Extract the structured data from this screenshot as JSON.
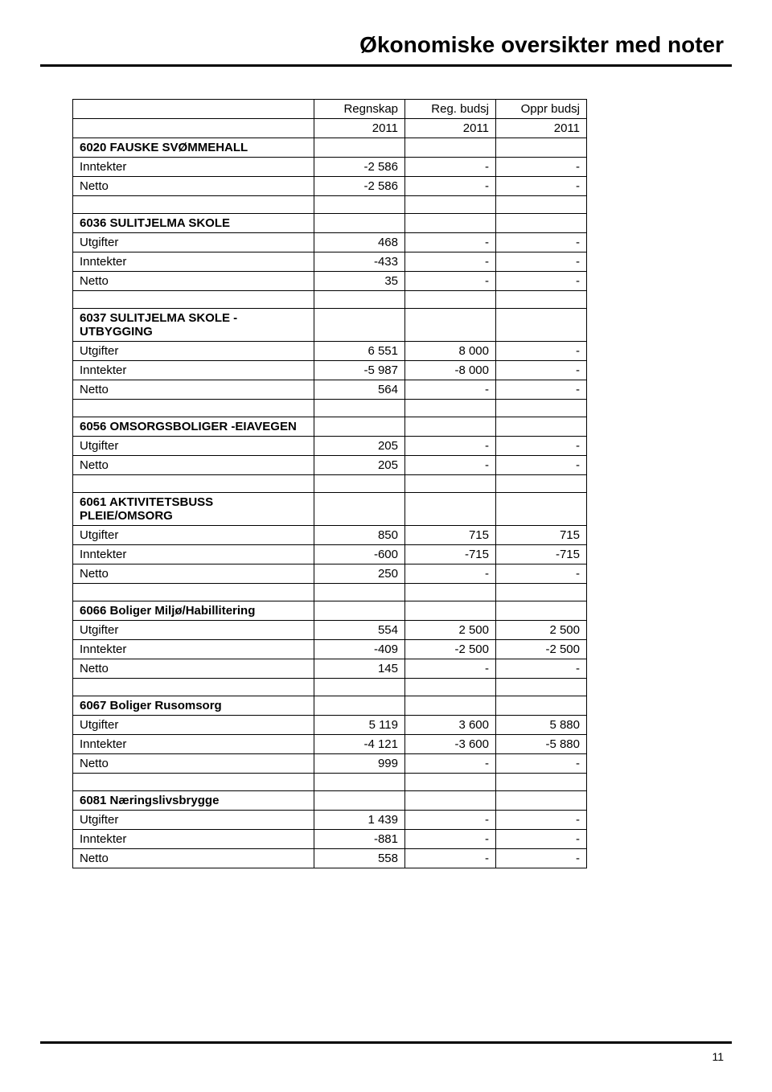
{
  "page": {
    "title": "Økonomiske oversikter med noter",
    "pageNumber": "11"
  },
  "tableHeaders": {
    "col1": "Regnskap",
    "col2": "Reg. budsj",
    "col3": "Oppr budsj",
    "year": "2011"
  },
  "sections": [
    {
      "title": "6020 FAUSKE SVØMMEHALL",
      "rows": [
        {
          "label": "Inntekter",
          "v1": "-2 586",
          "v2": "-",
          "v3": "-"
        },
        {
          "label": "Netto",
          "v1": "-2 586",
          "v2": "-",
          "v3": "-"
        }
      ]
    },
    {
      "title": "6036 SULITJELMA SKOLE",
      "rows": [
        {
          "label": "Utgifter",
          "v1": "468",
          "v2": "-",
          "v3": "-"
        },
        {
          "label": "Inntekter",
          "v1": "-433",
          "v2": "-",
          "v3": "-"
        },
        {
          "label": "Netto",
          "v1": "35",
          "v2": "-",
          "v3": "-"
        }
      ]
    },
    {
      "title": "6037 SULITJELMA SKOLE - UTBYGGING",
      "rows": [
        {
          "label": "Utgifter",
          "v1": "6 551",
          "v2": "8 000",
          "v3": "-"
        },
        {
          "label": "Inntekter",
          "v1": "-5 987",
          "v2": "-8 000",
          "v3": "-"
        },
        {
          "label": "Netto",
          "v1": "564",
          "v2": "-",
          "v3": "-"
        }
      ]
    },
    {
      "title": "6056 OMSORGSBOLIGER -EIAVEGEN",
      "rows": [
        {
          "label": "Utgifter",
          "v1": "205",
          "v2": "-",
          "v3": "-"
        },
        {
          "label": "Netto",
          "v1": "205",
          "v2": "-",
          "v3": "-"
        }
      ]
    },
    {
      "title": "6061 AKTIVITETSBUSS PLEIE/OMSORG",
      "rows": [
        {
          "label": "Utgifter",
          "v1": "850",
          "v2": "715",
          "v3": "715"
        },
        {
          "label": "Inntekter",
          "v1": "-600",
          "v2": "-715",
          "v3": "-715"
        },
        {
          "label": "Netto",
          "v1": "250",
          "v2": "-",
          "v3": "-"
        }
      ]
    },
    {
      "title": "6066 Boliger Miljø/Habillitering",
      "rows": [
        {
          "label": "Utgifter",
          "v1": "554",
          "v2": "2 500",
          "v3": "2 500"
        },
        {
          "label": "Inntekter",
          "v1": "-409",
          "v2": "-2 500",
          "v3": "-2 500"
        },
        {
          "label": "Netto",
          "v1": "145",
          "v2": "-",
          "v3": "-"
        }
      ]
    },
    {
      "title": "6067 Boliger Rusomsorg",
      "rows": [
        {
          "label": "Utgifter",
          "v1": "5 119",
          "v2": "3 600",
          "v3": "5 880"
        },
        {
          "label": "Inntekter",
          "v1": "-4 121",
          "v2": "-3 600",
          "v3": "-5 880"
        },
        {
          "label": "Netto",
          "v1": "999",
          "v2": "-",
          "v3": "-"
        }
      ]
    },
    {
      "title": "6081 Næringslivsbrygge",
      "rows": [
        {
          "label": "Utgifter",
          "v1": "1 439",
          "v2": "-",
          "v3": "-"
        },
        {
          "label": "Inntekter",
          "v1": "-881",
          "v2": "-",
          "v3": "-"
        },
        {
          "label": "Netto",
          "v1": "558",
          "v2": "-",
          "v3": "-"
        }
      ]
    }
  ]
}
